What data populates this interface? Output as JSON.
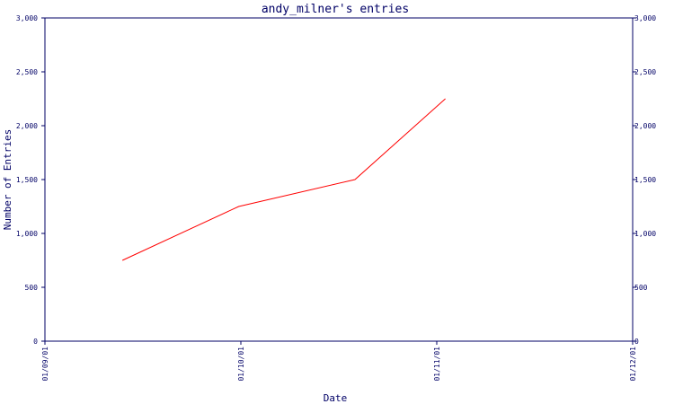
{
  "chart_data": {
    "type": "line",
    "title": "andy_milner's entries",
    "xlabel": "Date",
    "ylabel": "Number of Entries",
    "x_ticks": [
      "01/09/01",
      "01/10/01",
      "01/11/01",
      "01/12/01"
    ],
    "y_ticks": [
      "0",
      "500",
      "1,000",
      "1,500",
      "2,000",
      "2,500",
      "3,000"
    ],
    "ylim": [
      0,
      3000
    ],
    "xlim": [
      "2001-09-01",
      "2001-12-01"
    ],
    "y_axis_right": true,
    "grid": false,
    "colors": {
      "axis": "#000066",
      "line": "#ff0000",
      "background": "#ffffff"
    },
    "series": [
      {
        "x": [
          "2001-09-13",
          "2001-10-01",
          "2001-10-19",
          "2001-11-02"
        ],
        "y": [
          750,
          1250,
          1500,
          2250
        ]
      }
    ]
  }
}
